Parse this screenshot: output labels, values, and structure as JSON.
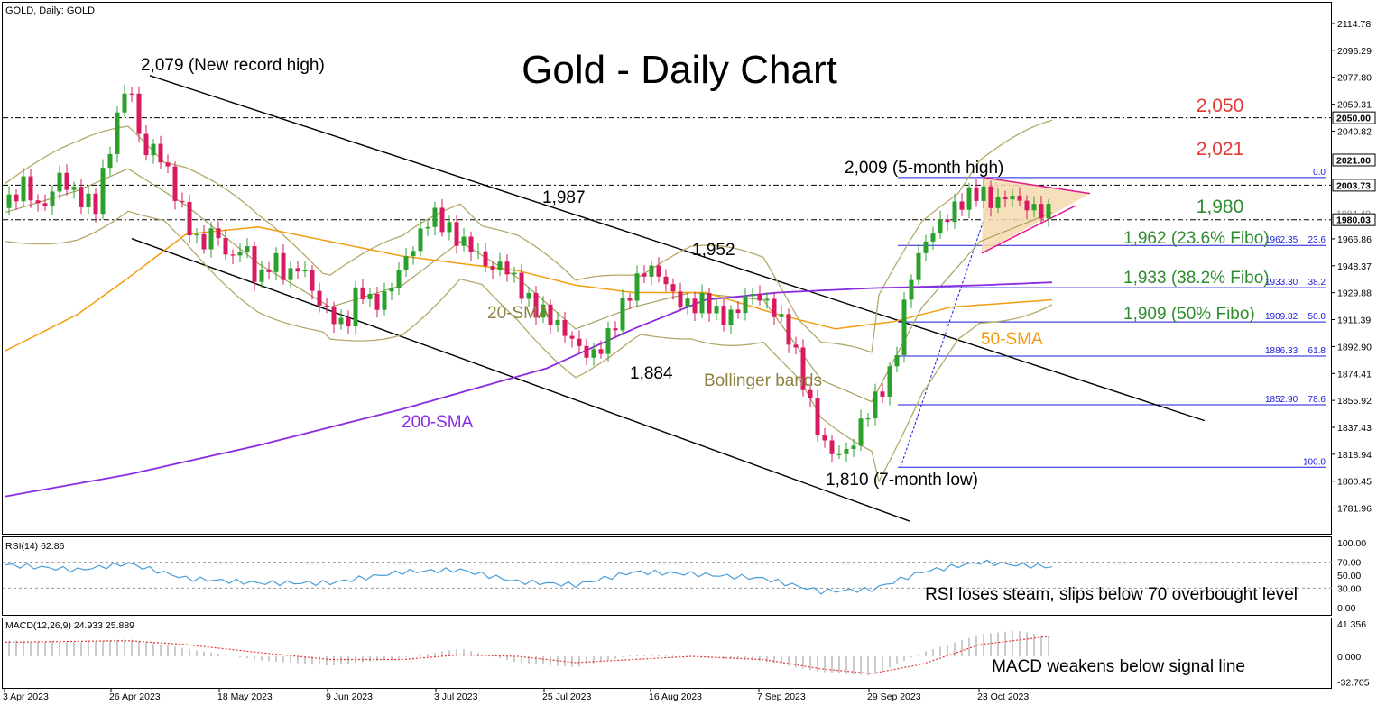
{
  "header": {
    "symbol_label": "GOLD, Daily:  GOLD",
    "title": "Gold - Daily Chart"
  },
  "colors": {
    "bull": "#2ca02c",
    "bear": "#d81b60",
    "bollinger": "#b5a96a",
    "sma20": "#a89f5e",
    "sma50": "#f39c12",
    "sma200": "#8a2be2",
    "rsi_line": "#4a9fd8",
    "macd_hist": "#c0c0c0",
    "macd_signal": "#e53935",
    "fibo": "#1a1adb",
    "triangle_fill": "#f7d9b0",
    "triangle_edge": "#e0188e",
    "red_level": "#e53935",
    "green_text": "#2e8b2e",
    "orange_text": "#f39c12",
    "purple_text": "#8a2be2",
    "olive_text": "#8c8342"
  },
  "chart_data": {
    "type": "candlestick",
    "y_axis_ticks": [
      "2114.78",
      "2096.29",
      "2077.80",
      "2059.31",
      "2040.82",
      "1966.86",
      "1948.37",
      "1929.88",
      "1911.39",
      "1892.90",
      "1874.41",
      "1855.92",
      "1837.43",
      "1818.94",
      "1800.45",
      "1781.96"
    ],
    "ylim": [
      1773,
      2123
    ],
    "x_axis_labels": [
      "3 Apr 2023",
      "26 Apr 2023",
      "18 May 2023",
      "9 Jun 2023",
      "3 Jul 2023",
      "25 Jul 2023",
      "16 Aug 2023",
      "7 Sep 2023",
      "29 Sep 2023",
      "23 Oct 2023"
    ],
    "price_tags": [
      {
        "label": "2050.00",
        "value": 2050,
        "boxed": true
      },
      {
        "label": "2021.00",
        "value": 2021,
        "boxed": true
      },
      {
        "label": "2003.73",
        "value": 2003.73,
        "boxed": true
      },
      {
        "label": "1984.49",
        "value": 1984.5,
        "boxed": false
      },
      {
        "label": "1980.03",
        "value": 1980.03,
        "boxed": true
      }
    ],
    "horizontal_levels": [
      {
        "label": "2,050",
        "value": 2050
      },
      {
        "label": "2,021",
        "value": 2021
      },
      {
        "label": "",
        "value": 2003.73
      },
      {
        "label": "1,980",
        "value": 1980
      }
    ],
    "fibonacci": [
      {
        "ratio": "0.0",
        "price_label": "",
        "value": 2009
      },
      {
        "ratio": "23.6",
        "price_label": "1962.35",
        "value": 1962.35
      },
      {
        "ratio": "38.2",
        "price_label": "1933.30",
        "value": 1933.3
      },
      {
        "ratio": "50.0",
        "price_label": "1909.82",
        "value": 1909.82
      },
      {
        "ratio": "61.8",
        "price_label": "1886.33",
        "value": 1886.33
      },
      {
        "ratio": "78.6",
        "price_label": "1852.90",
        "value": 1852.9
      },
      {
        "ratio": "100.0",
        "price_label": "",
        "value": 1810
      }
    ],
    "annotations": {
      "record_high": "2,079 (New record high)",
      "five_month_high": "2,009 (5-month high)",
      "level_1987": "1,987",
      "level_1952": "1,952",
      "level_1884": "1,884",
      "seven_month_low": "1,810 (7-month low)",
      "sma20": "20-SMA",
      "sma50": "50-SMA",
      "sma200": "200-SMA",
      "bollinger": "Bollinger bands",
      "fibo_236": "1,962 (23.6% Fibo)",
      "fibo_382": "1,933 (38.2% Fibo)",
      "fibo_50": "1,909 (50% Fibo)"
    },
    "price_path": [
      [
        0,
        1988
      ],
      [
        5,
        2005
      ],
      [
        10,
        1985
      ],
      [
        15,
        2010
      ],
      [
        20,
        1995
      ],
      [
        25,
        1990
      ],
      [
        30,
        2040
      ],
      [
        34,
        2079
      ],
      [
        38,
        2025
      ],
      [
        42,
        2030
      ],
      [
        46,
        2005
      ],
      [
        50,
        1980
      ],
      [
        54,
        1960
      ],
      [
        58,
        1975
      ],
      [
        62,
        1950
      ],
      [
        66,
        1965
      ],
      [
        70,
        1935
      ],
      [
        74,
        1955
      ],
      [
        78,
        1940
      ],
      [
        82,
        1950
      ],
      [
        86,
        1925
      ],
      [
        90,
        1915
      ],
      [
        94,
        1905
      ],
      [
        98,
        1935
      ],
      [
        102,
        1920
      ],
      [
        106,
        1930
      ],
      [
        110,
        1950
      ],
      [
        114,
        1965
      ],
      [
        118,
        1985
      ],
      [
        122,
        1975
      ],
      [
        126,
        1965
      ],
      [
        130,
        1960
      ],
      [
        134,
        1945
      ],
      [
        138,
        1950
      ],
      [
        142,
        1935
      ],
      [
        146,
        1920
      ],
      [
        150,
        1915
      ],
      [
        154,
        1905
      ],
      [
        158,
        1895
      ],
      [
        162,
        1885
      ],
      [
        166,
        1895
      ],
      [
        170,
        1915
      ],
      [
        174,
        1935
      ],
      [
        178,
        1948
      ],
      [
        182,
        1940
      ],
      [
        186,
        1925
      ],
      [
        190,
        1920
      ],
      [
        194,
        1925
      ],
      [
        198,
        1912
      ],
      [
        202,
        1915
      ],
      [
        206,
        1930
      ],
      [
        210,
        1925
      ],
      [
        214,
        1915
      ],
      [
        218,
        1895
      ],
      [
        222,
        1860
      ],
      [
        226,
        1828
      ],
      [
        230,
        1818
      ],
      [
        234,
        1822
      ],
      [
        238,
        1845
      ],
      [
        242,
        1860
      ],
      [
        246,
        1878
      ],
      [
        250,
        1935
      ],
      [
        254,
        1962
      ],
      [
        258,
        1975
      ],
      [
        262,
        1985
      ],
      [
        266,
        1995
      ],
      [
        270,
        2000
      ],
      [
        274,
        1990
      ],
      [
        278,
        1998
      ],
      [
        282,
        1990
      ],
      [
        286,
        1986
      ],
      [
        290,
        1985
      ]
    ],
    "sma20": [
      [
        0,
        1985
      ],
      [
        20,
        2000
      ],
      [
        34,
        2015
      ],
      [
        50,
        1990
      ],
      [
        70,
        1950
      ],
      [
        90,
        1920
      ],
      [
        110,
        1935
      ],
      [
        126,
        1965
      ],
      [
        142,
        1940
      ],
      [
        158,
        1905
      ],
      [
        174,
        1920
      ],
      [
        190,
        1930
      ],
      [
        210,
        1925
      ],
      [
        226,
        1870
      ],
      [
        240,
        1855
      ],
      [
        254,
        1920
      ],
      [
        270,
        1965
      ],
      [
        290,
        1985
      ]
    ],
    "sma50": [
      [
        0,
        1890
      ],
      [
        20,
        1915
      ],
      [
        34,
        1940
      ],
      [
        50,
        1970
      ],
      [
        70,
        1975
      ],
      [
        90,
        1965
      ],
      [
        110,
        1955
      ],
      [
        126,
        1950
      ],
      [
        142,
        1945
      ],
      [
        158,
        1935
      ],
      [
        174,
        1930
      ],
      [
        194,
        1930
      ],
      [
        214,
        1915
      ],
      [
        230,
        1905
      ],
      [
        246,
        1910
      ],
      [
        262,
        1920
      ],
      [
        290,
        1925
      ]
    ],
    "sma200": [
      [
        0,
        1790
      ],
      [
        34,
        1805
      ],
      [
        70,
        1825
      ],
      [
        110,
        1850
      ],
      [
        150,
        1878
      ],
      [
        174,
        1905
      ],
      [
        194,
        1925
      ],
      [
        214,
        1930
      ],
      [
        240,
        1933
      ],
      [
        270,
        1935
      ],
      [
        290,
        1937
      ]
    ],
    "rsi": {
      "label": "RSI(14) 62.86",
      "ticks": [
        "100.00",
        "70.00",
        "50.00",
        "30.00",
        "0.00"
      ],
      "levels": [
        100,
        70,
        50,
        30,
        0
      ],
      "values": [
        [
          0,
          66
        ],
        [
          20,
          58
        ],
        [
          34,
          68
        ],
        [
          50,
          45
        ],
        [
          70,
          38
        ],
        [
          90,
          38
        ],
        [
          110,
          55
        ],
        [
          126,
          58
        ],
        [
          142,
          40
        ],
        [
          158,
          35
        ],
        [
          174,
          55
        ],
        [
          190,
          52
        ],
        [
          210,
          45
        ],
        [
          226,
          25
        ],
        [
          240,
          28
        ],
        [
          254,
          55
        ],
        [
          270,
          70
        ],
        [
          280,
          66
        ],
        [
          290,
          62.86
        ]
      ],
      "caption": "RSI loses steam, slips below 70 overbought level"
    },
    "macd": {
      "label": "MACD(12,26,9) 24.933 25.889",
      "ticks": [
        "41.356",
        "0.000",
        "-32.705"
      ],
      "range": [
        -38,
        45
      ],
      "hist": [
        [
          0,
          20
        ],
        [
          20,
          18
        ],
        [
          34,
          22
        ],
        [
          50,
          10
        ],
        [
          70,
          -5
        ],
        [
          90,
          -12
        ],
        [
          110,
          -2
        ],
        [
          126,
          10
        ],
        [
          142,
          -8
        ],
        [
          158,
          -14
        ],
        [
          174,
          2
        ],
        [
          190,
          0
        ],
        [
          210,
          -6
        ],
        [
          226,
          -20
        ],
        [
          240,
          -25
        ],
        [
          254,
          5
        ],
        [
          270,
          28
        ],
        [
          280,
          33
        ],
        [
          290,
          24.933
        ]
      ],
      "signal": [
        [
          0,
          18
        ],
        [
          34,
          20
        ],
        [
          50,
          15
        ],
        [
          70,
          5
        ],
        [
          90,
          -4
        ],
        [
          110,
          -4
        ],
        [
          126,
          2
        ],
        [
          142,
          0
        ],
        [
          158,
          -8
        ],
        [
          174,
          -4
        ],
        [
          190,
          0
        ],
        [
          210,
          -4
        ],
        [
          226,
          -16
        ],
        [
          240,
          -22
        ],
        [
          254,
          -10
        ],
        [
          270,
          15
        ],
        [
          290,
          25.889
        ]
      ],
      "caption": "MACD weakens below signal line"
    }
  }
}
